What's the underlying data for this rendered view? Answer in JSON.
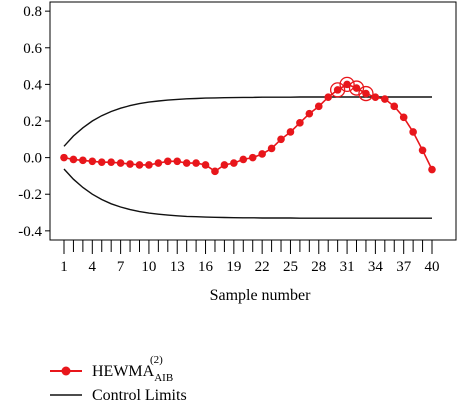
{
  "chart_data": {
    "type": "line",
    "xlabel": "Sample number",
    "ylabel": "",
    "xlim": [
      1,
      40
    ],
    "ylim": [
      -0.45,
      0.85
    ],
    "x_ticks": [
      1,
      4,
      7,
      10,
      13,
      16,
      19,
      22,
      25,
      28,
      31,
      34,
      37,
      40
    ],
    "y_ticks": [
      -0.4,
      -0.2,
      0.0,
      0.2,
      0.4,
      0.6,
      0.8
    ],
    "y_tick_labels": [
      "-0.4",
      "-0.2",
      "0.0",
      "0.2",
      "0.4",
      "0.6",
      "0.8"
    ],
    "x": [
      1,
      2,
      3,
      4,
      5,
      6,
      7,
      8,
      9,
      10,
      11,
      12,
      13,
      14,
      15,
      16,
      17,
      18,
      19,
      20,
      21,
      22,
      23,
      24,
      25,
      26,
      27,
      28,
      29,
      30,
      31,
      32,
      33,
      34,
      35,
      36,
      37,
      38,
      39,
      40
    ],
    "series": [
      {
        "name": "HEWMA",
        "name_superscript": "(2)",
        "name_subscript": "AIB",
        "color": "#e8161b",
        "marker": "circle",
        "values": [
          0.0,
          -0.01,
          -0.015,
          -0.02,
          -0.025,
          -0.025,
          -0.03,
          -0.035,
          -0.04,
          -0.04,
          -0.03,
          -0.02,
          -0.02,
          -0.03,
          -0.03,
          -0.04,
          -0.075,
          -0.04,
          -0.03,
          -0.01,
          0.0,
          0.02,
          0.05,
          0.1,
          0.14,
          0.19,
          0.24,
          0.28,
          0.33,
          0.37,
          0.4,
          0.38,
          0.35,
          0.33,
          0.32,
          0.28,
          0.22,
          0.14,
          0.04,
          -0.065
        ],
        "out_of_control_x": [
          30,
          31,
          32,
          33
        ]
      },
      {
        "name": "Control Limits",
        "color": "#111111",
        "upper": [
          0.062,
          0.118,
          0.163,
          0.2,
          0.229,
          0.252,
          0.27,
          0.284,
          0.295,
          0.303,
          0.309,
          0.314,
          0.318,
          0.321,
          0.323,
          0.325,
          0.326,
          0.327,
          0.328,
          0.329,
          0.329,
          0.33,
          0.33,
          0.33,
          0.33,
          0.331,
          0.331,
          0.331,
          0.331,
          0.331,
          0.331,
          0.331,
          0.331,
          0.331,
          0.331,
          0.331,
          0.331,
          0.331,
          0.331,
          0.331
        ],
        "lower": [
          -0.062,
          -0.118,
          -0.163,
          -0.2,
          -0.229,
          -0.252,
          -0.27,
          -0.284,
          -0.295,
          -0.303,
          -0.309,
          -0.314,
          -0.318,
          -0.321,
          -0.323,
          -0.325,
          -0.326,
          -0.327,
          -0.328,
          -0.329,
          -0.329,
          -0.33,
          -0.33,
          -0.33,
          -0.33,
          -0.331,
          -0.331,
          -0.331,
          -0.331,
          -0.331,
          -0.331,
          -0.331,
          -0.331,
          -0.331,
          -0.331,
          -0.331,
          -0.331,
          -0.331,
          -0.331,
          -0.331
        ]
      }
    ],
    "legend": {
      "placement": "bottom",
      "entries": [
        {
          "label": "HEWMA",
          "superscript": "(2)",
          "subscript": "AIB",
          "style": "red-line-circle"
        },
        {
          "label": "Control Limits",
          "style": "black-line"
        }
      ]
    },
    "grid": false
  }
}
